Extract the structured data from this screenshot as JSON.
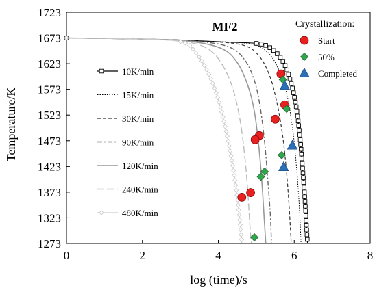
{
  "chart_data": {
    "type": "line",
    "title": "MF2",
    "xlabel": "log (time)/s",
    "ylabel": "Temperature/K",
    "xlim": [
      0,
      8
    ],
    "ylim": [
      1273,
      1723
    ],
    "x_ticks": [
      0,
      2,
      4,
      6,
      8
    ],
    "y_ticks": [
      1273,
      1323,
      1373,
      1423,
      1473,
      1523,
      1573,
      1623,
      1673,
      1723
    ],
    "grid": false,
    "legend_placement": "left",
    "series": [
      {
        "name": "10K/min",
        "style": "solid-square",
        "color": "#000000",
        "points": [
          [
            0,
            1673
          ],
          [
            1,
            1672
          ],
          [
            2,
            1671
          ],
          [
            3,
            1669
          ],
          [
            4.2,
            1665
          ],
          [
            5.05,
            1662
          ],
          [
            5.4,
            1652
          ],
          [
            5.7,
            1628
          ],
          [
            5.9,
            1590
          ],
          [
            6.05,
            1540
          ],
          [
            6.15,
            1480
          ],
          [
            6.22,
            1420
          ],
          [
            6.28,
            1360
          ],
          [
            6.32,
            1310
          ],
          [
            6.35,
            1273
          ]
        ]
      },
      {
        "name": "15K/min",
        "style": "dotted",
        "color": "#000000",
        "points": [
          [
            0,
            1673
          ],
          [
            2,
            1671
          ],
          [
            3.5,
            1667
          ],
          [
            4.8,
            1662
          ],
          [
            5.3,
            1645
          ],
          [
            5.6,
            1610
          ],
          [
            5.8,
            1565
          ],
          [
            5.95,
            1500
          ],
          [
            6.05,
            1430
          ],
          [
            6.13,
            1350
          ],
          [
            6.18,
            1273
          ]
        ]
      },
      {
        "name": "30K/min",
        "style": "dashed",
        "color": "#333333",
        "points": [
          [
            0,
            1673
          ],
          [
            2,
            1671
          ],
          [
            3.5,
            1667
          ],
          [
            4.6,
            1660
          ],
          [
            5.05,
            1640
          ],
          [
            5.35,
            1600
          ],
          [
            5.55,
            1545
          ],
          [
            5.7,
            1480
          ],
          [
            5.8,
            1410
          ],
          [
            5.87,
            1340
          ],
          [
            5.92,
            1273
          ]
        ]
      },
      {
        "name": "90K/min",
        "style": "dash-dot",
        "color": "#666666",
        "points": [
          [
            0,
            1673
          ],
          [
            2,
            1671
          ],
          [
            3.5,
            1666
          ],
          [
            4.3,
            1655
          ],
          [
            4.7,
            1630
          ],
          [
            4.95,
            1590
          ],
          [
            5.1,
            1540
          ],
          [
            5.22,
            1470
          ],
          [
            5.3,
            1400
          ],
          [
            5.37,
            1330
          ],
          [
            5.4,
            1273
          ]
        ]
      },
      {
        "name": "120K/min",
        "style": "solid",
        "color": "#999999",
        "points": [
          [
            0,
            1673
          ],
          [
            2,
            1671
          ],
          [
            3.3,
            1666
          ],
          [
            4.1,
            1652
          ],
          [
            4.5,
            1625
          ],
          [
            4.78,
            1580
          ],
          [
            4.95,
            1530
          ],
          [
            5.07,
            1460
          ],
          [
            5.15,
            1390
          ],
          [
            5.21,
            1320
          ],
          [
            5.25,
            1273
          ]
        ]
      },
      {
        "name": "240K/min",
        "style": "long-dash",
        "color": "#bbbbbb",
        "points": [
          [
            0,
            1673
          ],
          [
            2,
            1671
          ],
          [
            3.2,
            1665
          ],
          [
            3.8,
            1648
          ],
          [
            4.15,
            1615
          ],
          [
            4.4,
            1570
          ],
          [
            4.58,
            1510
          ],
          [
            4.7,
            1440
          ],
          [
            4.78,
            1370
          ],
          [
            4.83,
            1310
          ],
          [
            4.87,
            1273
          ]
        ]
      },
      {
        "name": "480K/min",
        "style": "solid-diamond",
        "color": "#cccccc",
        "points": [
          [
            0,
            1673
          ],
          [
            2,
            1671
          ],
          [
            3.05,
            1665
          ],
          [
            3.4,
            1645
          ],
          [
            3.7,
            1610
          ],
          [
            3.95,
            1565
          ],
          [
            4.15,
            1510
          ],
          [
            4.32,
            1450
          ],
          [
            4.45,
            1390
          ],
          [
            4.55,
            1330
          ],
          [
            4.62,
            1273
          ]
        ]
      }
    ],
    "markers": {
      "title": "Crystallization:",
      "entries": [
        {
          "name": "Start",
          "shape": "circle",
          "color": "#e8201f"
        },
        {
          "name": "50%",
          "shape": "diamond",
          "color": "#2ea84a"
        },
        {
          "name": "Completed",
          "shape": "triangle",
          "color": "#2b6fb8"
        }
      ],
      "start": [
        [
          5.65,
          1603
        ],
        [
          5.5,
          1515
        ],
        [
          5.75,
          1543
        ],
        [
          5.08,
          1483
        ],
        [
          4.97,
          1475
        ],
        [
          4.85,
          1372
        ],
        [
          4.62,
          1363
        ]
      ],
      "half": [
        [
          5.7,
          1592
        ],
        [
          5.8,
          1535
        ],
        [
          5.67,
          1445
        ],
        [
          5.22,
          1413
        ],
        [
          5.12,
          1403
        ],
        [
          4.95,
          1285
        ]
      ],
      "completed": [
        [
          5.75,
          1580
        ],
        [
          5.95,
          1464
        ],
        [
          5.72,
          1422
        ]
      ]
    }
  }
}
